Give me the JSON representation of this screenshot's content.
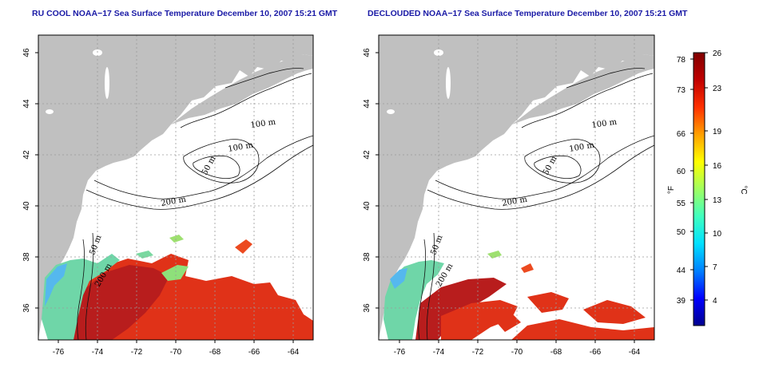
{
  "colors": {
    "land": "#c0c0c0",
    "ocean_nodata": "#ffffff",
    "title": "#1a1aa6",
    "sst_warm": "#e03218",
    "sst_gulfstream": "#b81d1d",
    "sst_cool": "#6fd6a8"
  },
  "maps": [
    {
      "title": "RU COOL NOAA−17 Sea Surface Temperature December 10, 2007 15:21 GMT",
      "x_ticks": [
        "-76",
        "-74",
        "-72",
        "-70",
        "-68",
        "-66",
        "-64"
      ],
      "y_ticks": [
        "36",
        "38",
        "40",
        "42",
        "44",
        "46"
      ],
      "contour_labels": [
        "100 m",
        "100 m",
        "50 m",
        "200 m",
        "50 m",
        "200 m"
      ]
    },
    {
      "title": "DECLOUDED NOAA−17 Sea Surface Temperature December 10, 2007 15:21 GMT",
      "x_ticks": [
        "-76",
        "-74",
        "-72",
        "-70",
        "-68",
        "-66",
        "-64"
      ],
      "y_ticks": [
        "36",
        "38",
        "40",
        "42",
        "44",
        "46"
      ],
      "contour_labels": [
        "100 m",
        "100 m",
        "50 m",
        "200 m",
        "50 m",
        "200 m"
      ]
    }
  ],
  "colorbar": {
    "fahrenheit_label": "°F",
    "celsius_label": "°C",
    "fahrenheit_ticks": [
      "78",
      "73",
      "66",
      "60",
      "55",
      "50",
      "44",
      "39"
    ],
    "celsius_ticks": [
      "26",
      "23",
      "19",
      "16",
      "13",
      "10",
      "7",
      "4"
    ],
    "gradient_stops": [
      "#00008f",
      "#0000ff",
      "#0080ff",
      "#00e0ff",
      "#40ffbf",
      "#a0ff60",
      "#ffff00",
      "#ffa000",
      "#ff3000",
      "#c00000",
      "#800000"
    ]
  }
}
